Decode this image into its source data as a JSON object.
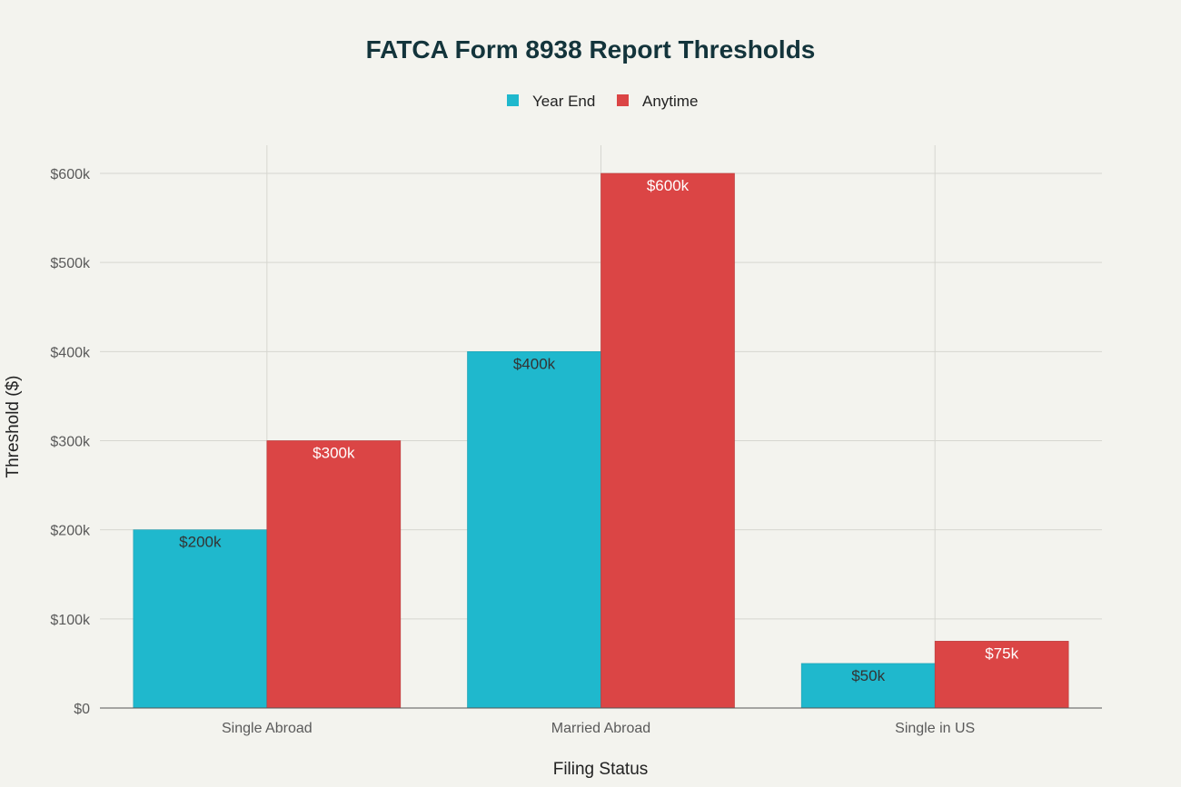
{
  "chart_data": {
    "type": "bar",
    "title": "FATCA Form 8938 Report Thresholds",
    "xlabel": "Filing Status",
    "ylabel": "Threshold ($)",
    "categories": [
      "Single Abroad",
      "Married Abroad",
      "Single in US"
    ],
    "series": [
      {
        "name": "Year End",
        "values": [
          200000,
          400000,
          50000
        ],
        "labels": [
          "$200k",
          "$400k",
          "$50k"
        ],
        "color": "#1FB8CD",
        "label_color": "#333333"
      },
      {
        "name": "Anytime",
        "values": [
          300000,
          600000,
          75000
        ],
        "labels": [
          "$300k",
          "$600k",
          "$75k"
        ],
        "color": "#DB4545",
        "label_color": "#FFFFFF"
      }
    ],
    "ylim": [
      0,
      630000
    ],
    "yticks": [
      0,
      100000,
      200000,
      300000,
      400000,
      500000,
      600000
    ],
    "ytick_labels": [
      "$0",
      "$100k",
      "$200k",
      "$300k",
      "$400k",
      "$500k",
      "$600k"
    ],
    "grid": true,
    "legend_position": "top-center"
  }
}
